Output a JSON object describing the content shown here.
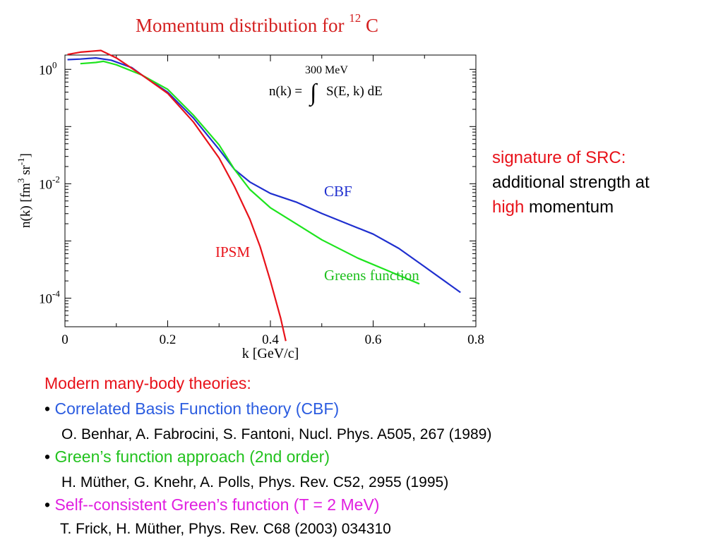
{
  "chart_data": {
    "type": "line",
    "title": "Momentum distribution for",
    "title_superscript": "12",
    "title_suffix": "C",
    "xlabel": "k [GeV/c]",
    "ylabel": "n(k) [fm",
    "ylabel_sup1": "3",
    "ylabel_mid": " sr",
    "ylabel_sup2": "-1",
    "ylabel_end": "]",
    "xlim": [
      0,
      0.8
    ],
    "ylim_log10": [
      -4.5,
      0.25
    ],
    "yscale": "log",
    "x_ticks": [
      "0",
      "0.2",
      "0.4",
      "0.6",
      "0.8"
    ],
    "y_ticks": [
      {
        "base": "10",
        "exp": "0",
        "value_log10": 0
      },
      {
        "base": "10",
        "exp": "-2",
        "value_log10": -2
      },
      {
        "base": "10",
        "exp": "-4",
        "value_log10": -4
      }
    ],
    "formula": {
      "lhs": "n(k) =",
      "upper_limit": "300 MeV",
      "integrand": "S(E, k) dE"
    },
    "series": [
      {
        "name": "CBF",
        "color": "#1f2fcf",
        "points_log10": [
          [
            0.005,
            0.17
          ],
          [
            0.03,
            0.18
          ],
          [
            0.06,
            0.2
          ],
          [
            0.09,
            0.16
          ],
          [
            0.13,
            0.03
          ],
          [
            0.15,
            -0.1
          ],
          [
            0.2,
            -0.4
          ],
          [
            0.25,
            -0.85
          ],
          [
            0.3,
            -1.4
          ],
          [
            0.33,
            -1.75
          ],
          [
            0.36,
            -1.97
          ],
          [
            0.4,
            -2.17
          ],
          [
            0.45,
            -2.32
          ],
          [
            0.5,
            -2.52
          ],
          [
            0.55,
            -2.7
          ],
          [
            0.6,
            -2.88
          ],
          [
            0.65,
            -3.13
          ],
          [
            0.7,
            -3.45
          ],
          [
            0.77,
            -3.9
          ]
        ]
      },
      {
        "name": "Greens function",
        "color": "#1ee41e",
        "points_log10": [
          [
            0.03,
            0.1
          ],
          [
            0.06,
            0.12
          ],
          [
            0.075,
            0.14
          ],
          [
            0.1,
            0.08
          ],
          [
            0.15,
            -0.1
          ],
          [
            0.2,
            -0.35
          ],
          [
            0.25,
            -0.8
          ],
          [
            0.3,
            -1.32
          ],
          [
            0.33,
            -1.75
          ],
          [
            0.36,
            -2.1
          ],
          [
            0.4,
            -2.42
          ],
          [
            0.45,
            -2.7
          ],
          [
            0.5,
            -2.98
          ],
          [
            0.57,
            -3.3
          ],
          [
            0.65,
            -3.6
          ],
          [
            0.69,
            -3.75
          ]
        ]
      },
      {
        "name": "IPSM",
        "color": "#e8121a",
        "points_log10": [
          [
            0.005,
            0.26
          ],
          [
            0.03,
            0.3
          ],
          [
            0.07,
            0.33
          ],
          [
            0.1,
            0.2
          ],
          [
            0.15,
            -0.1
          ],
          [
            0.2,
            -0.42
          ],
          [
            0.25,
            -0.92
          ],
          [
            0.3,
            -1.55
          ],
          [
            0.33,
            -2.05
          ],
          [
            0.36,
            -2.62
          ],
          [
            0.38,
            -3.1
          ],
          [
            0.4,
            -3.7
          ],
          [
            0.42,
            -4.35
          ],
          [
            0.43,
            -4.75
          ]
        ]
      }
    ],
    "labels": {
      "cbf": "CBF",
      "greens": "Greens function",
      "ipsm": "IPSM"
    }
  },
  "note": {
    "line1": "signature of SRC:",
    "line2": "additional strength at",
    "line3_a": "high",
    "line3_b": " momentum"
  },
  "theories": {
    "heading": "Modern many-body theories:",
    "bullet": "•",
    "items": [
      {
        "label": "Correlated Basis Function theory (CBF)",
        "color": "#2b5ce0",
        "ref": "O. Benhar, A. Fabrocini, S. Fantoni, Nucl. Phys. A505, 267 (1989)"
      },
      {
        "label": "Green’s function approach (2nd order)",
        "color": "#22c21e",
        "ref": "H. Müther,  G. Knehr, A. Polls, Phys. Rev. C52, 2955 (1995)"
      },
      {
        "label": "Self--consistent Green’s function (T = 2 MeV)",
        "color": "#e01ee0",
        "ref": "T. Frick, H. Müther, Phys. Rev. C68 (2003) 034310"
      }
    ]
  }
}
